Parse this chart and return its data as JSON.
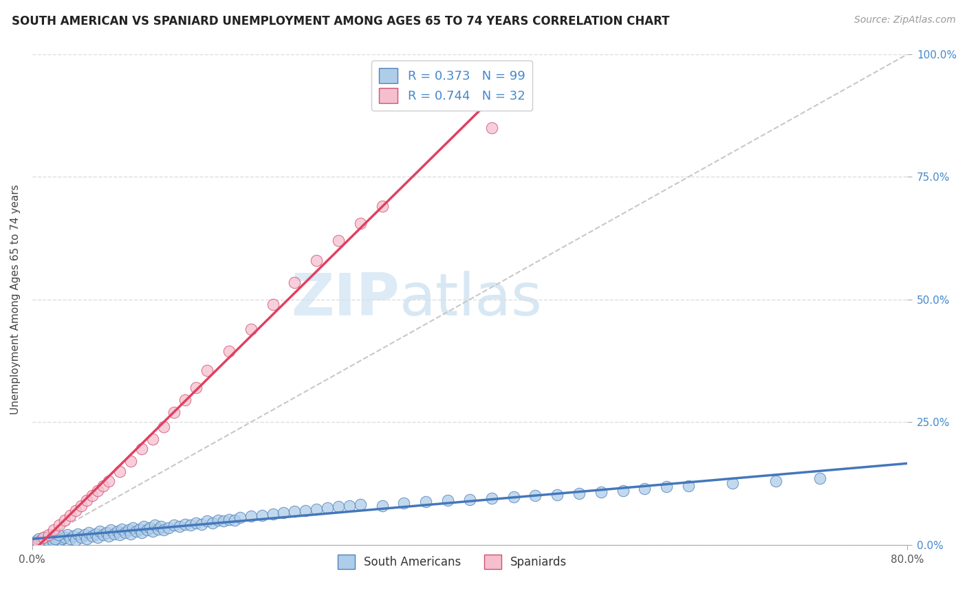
{
  "title": "SOUTH AMERICAN VS SPANIARD UNEMPLOYMENT AMONG AGES 65 TO 74 YEARS CORRELATION CHART",
  "source": "Source: ZipAtlas.com",
  "ylabel": "Unemployment Among Ages 65 to 74 years",
  "xlim": [
    0.0,
    0.8
  ],
  "ylim": [
    0.0,
    1.0
  ],
  "south_american_R": 0.373,
  "south_american_N": 99,
  "spaniard_R": 0.744,
  "spaniard_N": 32,
  "south_american_fill": "#aecde8",
  "south_american_edge": "#5080bb",
  "spaniard_fill": "#f5bfce",
  "spaniard_edge": "#d05070",
  "south_american_line": "#4477bb",
  "spaniard_line": "#e04060",
  "diagonal_color": "#c8c8c8",
  "background_color": "#ffffff",
  "watermark_zip": "ZIP",
  "watermark_atlas": "atlas",
  "legend_text_color": "#4488cc",
  "grid_color": "#dddddd",
  "title_fontsize": 12,
  "source_fontsize": 10,
  "ylabel_fontsize": 11,
  "legend_fontsize": 13,
  "sa_x": [
    0.005,
    0.008,
    0.01,
    0.012,
    0.015,
    0.018,
    0.02,
    0.022,
    0.025,
    0.028,
    0.03,
    0.032,
    0.035,
    0.038,
    0.04,
    0.042,
    0.045,
    0.048,
    0.05,
    0.052,
    0.055,
    0.058,
    0.06,
    0.062,
    0.065,
    0.068,
    0.07,
    0.072,
    0.075,
    0.078,
    0.08,
    0.082,
    0.085,
    0.088,
    0.09,
    0.092,
    0.095,
    0.098,
    0.1,
    0.102,
    0.105,
    0.108,
    0.11,
    0.112,
    0.115,
    0.118,
    0.12,
    0.125,
    0.13,
    0.135,
    0.14,
    0.145,
    0.15,
    0.155,
    0.16,
    0.165,
    0.17,
    0.175,
    0.18,
    0.185,
    0.19,
    0.2,
    0.21,
    0.22,
    0.23,
    0.24,
    0.25,
    0.26,
    0.27,
    0.28,
    0.29,
    0.3,
    0.32,
    0.34,
    0.36,
    0.38,
    0.4,
    0.42,
    0.44,
    0.46,
    0.48,
    0.5,
    0.52,
    0.54,
    0.56,
    0.58,
    0.6,
    0.64,
    0.68,
    0.72,
    0.004,
    0.006,
    0.009,
    0.011,
    0.014,
    0.016,
    0.019,
    0.021,
    0.024
  ],
  "sa_y": [
    0.005,
    0.01,
    0.008,
    0.012,
    0.006,
    0.015,
    0.01,
    0.018,
    0.008,
    0.012,
    0.015,
    0.02,
    0.012,
    0.018,
    0.01,
    0.022,
    0.015,
    0.02,
    0.012,
    0.025,
    0.018,
    0.022,
    0.015,
    0.028,
    0.02,
    0.025,
    0.018,
    0.03,
    0.022,
    0.028,
    0.02,
    0.032,
    0.025,
    0.03,
    0.022,
    0.035,
    0.028,
    0.032,
    0.025,
    0.038,
    0.03,
    0.035,
    0.028,
    0.04,
    0.032,
    0.038,
    0.03,
    0.035,
    0.04,
    0.038,
    0.042,
    0.04,
    0.045,
    0.042,
    0.048,
    0.045,
    0.05,
    0.048,
    0.052,
    0.05,
    0.055,
    0.058,
    0.06,
    0.062,
    0.065,
    0.068,
    0.07,
    0.072,
    0.075,
    0.078,
    0.08,
    0.082,
    0.08,
    0.085,
    0.088,
    0.09,
    0.092,
    0.095,
    0.098,
    0.1,
    0.102,
    0.105,
    0.108,
    0.11,
    0.115,
    0.118,
    0.12,
    0.125,
    0.13,
    0.135,
    0.008,
    0.012,
    0.006,
    0.015,
    0.01,
    0.018,
    0.008,
    0.012,
    0.02
  ],
  "sp_x": [
    0.005,
    0.01,
    0.015,
    0.02,
    0.025,
    0.03,
    0.035,
    0.04,
    0.045,
    0.05,
    0.055,
    0.06,
    0.065,
    0.07,
    0.08,
    0.09,
    0.1,
    0.11,
    0.12,
    0.13,
    0.14,
    0.15,
    0.16,
    0.18,
    0.2,
    0.22,
    0.24,
    0.26,
    0.28,
    0.3,
    0.32,
    0.42
  ],
  "sp_y": [
    0.005,
    0.015,
    0.02,
    0.03,
    0.04,
    0.05,
    0.06,
    0.07,
    0.08,
    0.09,
    0.1,
    0.11,
    0.12,
    0.13,
    0.15,
    0.17,
    0.195,
    0.215,
    0.24,
    0.27,
    0.295,
    0.32,
    0.355,
    0.395,
    0.44,
    0.49,
    0.535,
    0.58,
    0.62,
    0.655,
    0.69,
    0.85
  ]
}
